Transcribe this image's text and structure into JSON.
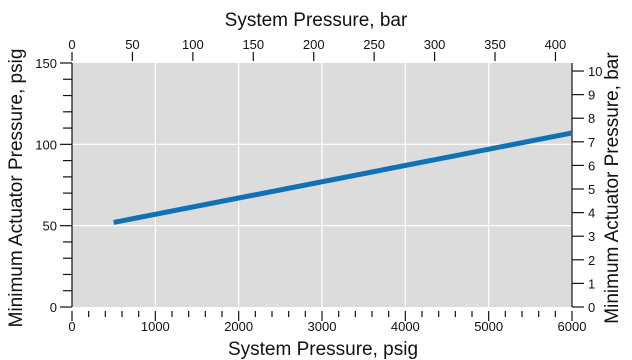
{
  "chart_data": {
    "type": "line",
    "x_axis_bottom": {
      "label": "System Pressure, psig",
      "range": [
        0,
        6000
      ],
      "ticks": [
        0,
        1000,
        2000,
        3000,
        4000,
        5000,
        6000
      ],
      "minor_step": 200
    },
    "x_axis_top": {
      "label": "System Pressure, bar",
      "range": [
        0,
        413.7
      ],
      "ticks": [
        0,
        50,
        100,
        150,
        200,
        250,
        300,
        350,
        400
      ]
    },
    "y_axis_left": {
      "label": "Minimum Actuator Pressure, psig",
      "range": [
        0,
        150
      ],
      "ticks": [
        0,
        50,
        100,
        150
      ],
      "minor_step": 10
    },
    "y_axis_right": {
      "label": "Minimum Actuator Pressure, bar",
      "range": [
        0,
        10.34
      ],
      "ticks": [
        0,
        1,
        2,
        3,
        4,
        5,
        6,
        7,
        8,
        9,
        10
      ]
    },
    "grid": true,
    "series": [
      {
        "color": "#1071b5",
        "x": [
          500,
          6000
        ],
        "y": [
          52,
          107
        ]
      }
    ]
  }
}
